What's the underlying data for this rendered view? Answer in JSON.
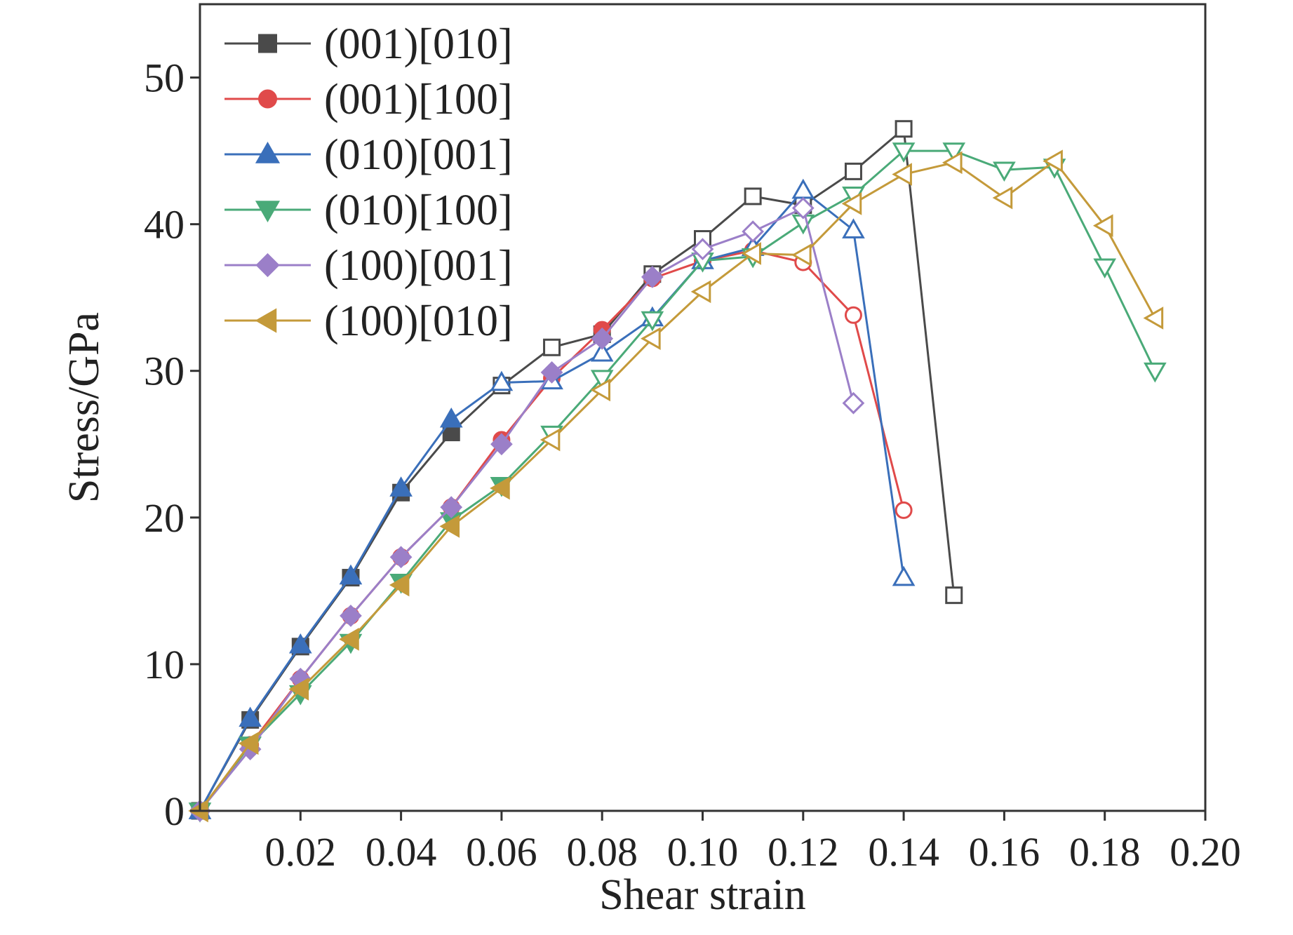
{
  "chart_data": {
    "type": "line",
    "xlabel": "Shear strain",
    "ylabel": "Stress/GPa",
    "xlim": [
      0,
      0.2
    ],
    "ylim": [
      0,
      55
    ],
    "xticks": [
      {
        "value": 0.02,
        "label": "0.02"
      },
      {
        "value": 0.04,
        "label": "0.04"
      },
      {
        "value": 0.06,
        "label": "0.06"
      },
      {
        "value": 0.08,
        "label": "0.08"
      },
      {
        "value": 0.1,
        "label": "0.10"
      },
      {
        "value": 0.12,
        "label": "0.12"
      },
      {
        "value": 0.14,
        "label": "0.14"
      },
      {
        "value": 0.16,
        "label": "0.16"
      },
      {
        "value": 0.18,
        "label": "0.18"
      },
      {
        "value": 0.2,
        "label": "0.20"
      }
    ],
    "yticks": [
      {
        "value": 0,
        "label": "0"
      },
      {
        "value": 10,
        "label": "10"
      },
      {
        "value": 20,
        "label": "20"
      },
      {
        "value": 30,
        "label": "30"
      },
      {
        "value": 40,
        "label": "40"
      },
      {
        "value": 50,
        "label": "50"
      }
    ],
    "grid": false,
    "legend_position": "top-left",
    "series": [
      {
        "name": "(001)[010]",
        "color": "#4a4a4a",
        "marker": "square",
        "x": [
          0,
          0.01,
          0.02,
          0.03,
          0.04,
          0.05,
          0.06,
          0.07,
          0.08,
          0.09,
          0.1,
          0.11,
          0.12,
          0.13,
          0.14,
          0.15
        ],
        "y": [
          0,
          6.2,
          11.2,
          15.9,
          21.7,
          25.8,
          29.0,
          31.6,
          32.5,
          36.6,
          39.0,
          41.9,
          41.3,
          43.6,
          46.5,
          14.7
        ],
        "filled": [
          true,
          true,
          true,
          true,
          true,
          true,
          false,
          false,
          false,
          false,
          false,
          false,
          false,
          false,
          false,
          false
        ]
      },
      {
        "name": "(001)[100]",
        "color": "#e04a4a",
        "marker": "circle",
        "x": [
          0,
          0.01,
          0.02,
          0.03,
          0.04,
          0.05,
          0.06,
          0.07,
          0.08,
          0.09,
          0.1,
          0.11,
          0.12,
          0.13,
          0.14
        ],
        "y": [
          0,
          4.5,
          9.0,
          13.3,
          17.3,
          20.7,
          25.3,
          29.5,
          32.8,
          36.3,
          37.5,
          38.2,
          37.4,
          33.8,
          20.5
        ],
        "filled": [
          true,
          true,
          true,
          true,
          true,
          true,
          true,
          true,
          true,
          true,
          false,
          false,
          false,
          false,
          false
        ]
      },
      {
        "name": "(010)[001]",
        "color": "#3a6fba",
        "marker": "triangle-up",
        "x": [
          0,
          0.01,
          0.02,
          0.03,
          0.04,
          0.05,
          0.06,
          0.07,
          0.08,
          0.09,
          0.1,
          0.11,
          0.12,
          0.13,
          0.14
        ],
        "y": [
          0,
          6.3,
          11.3,
          16.0,
          22.0,
          26.7,
          29.2,
          29.3,
          31.2,
          33.6,
          37.5,
          38.4,
          42.3,
          39.6,
          15.9
        ],
        "filled": [
          true,
          true,
          true,
          true,
          true,
          true,
          false,
          false,
          false,
          false,
          false,
          false,
          false,
          false,
          false
        ]
      },
      {
        "name": "(010)[100]",
        "color": "#4aaa78",
        "marker": "triangle-down",
        "x": [
          0,
          0.01,
          0.02,
          0.03,
          0.04,
          0.05,
          0.06,
          0.07,
          0.08,
          0.09,
          0.1,
          0.11,
          0.12,
          0.13,
          0.14,
          0.15,
          0.16,
          0.17,
          0.18,
          0.19
        ],
        "y": [
          0,
          4.5,
          8.0,
          11.5,
          15.6,
          19.8,
          22.2,
          25.7,
          29.5,
          33.5,
          37.5,
          37.8,
          40.1,
          42.0,
          45.0,
          45.0,
          43.7,
          43.9,
          37.1,
          30.0
        ],
        "filled": [
          true,
          true,
          true,
          true,
          true,
          true,
          true,
          false,
          false,
          false,
          false,
          false,
          false,
          false,
          false,
          false,
          false,
          false,
          false,
          false
        ]
      },
      {
        "name": "(100)[001]",
        "color": "#9b7fc8",
        "marker": "diamond",
        "x": [
          0,
          0.01,
          0.02,
          0.03,
          0.04,
          0.05,
          0.06,
          0.07,
          0.08,
          0.09,
          0.1,
          0.11,
          0.12,
          0.13
        ],
        "y": [
          0,
          4.2,
          9.0,
          13.3,
          17.3,
          20.7,
          25.0,
          29.9,
          32.2,
          36.4,
          38.3,
          39.5,
          41.1,
          27.8
        ],
        "filled": [
          true,
          true,
          true,
          true,
          true,
          true,
          true,
          true,
          true,
          true,
          false,
          false,
          false,
          false
        ]
      },
      {
        "name": "(100)[010]",
        "color": "#c49a3a",
        "marker": "triangle-left",
        "x": [
          0,
          0.01,
          0.02,
          0.03,
          0.04,
          0.05,
          0.06,
          0.07,
          0.08,
          0.09,
          0.1,
          0.11,
          0.12,
          0.13,
          0.14,
          0.15,
          0.16,
          0.17,
          0.18,
          0.19
        ],
        "y": [
          0,
          4.6,
          8.3,
          11.7,
          15.4,
          19.4,
          22.0,
          25.3,
          28.7,
          32.2,
          35.4,
          38.0,
          37.9,
          41.4,
          43.4,
          44.2,
          41.8,
          44.3,
          39.9,
          33.6
        ],
        "filled": [
          true,
          true,
          true,
          true,
          true,
          true,
          true,
          false,
          false,
          false,
          false,
          false,
          false,
          false,
          false,
          false,
          false,
          false,
          false,
          false
        ]
      }
    ]
  }
}
